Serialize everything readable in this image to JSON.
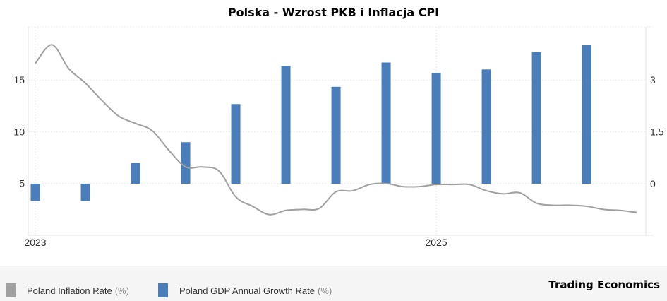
{
  "chart_data": {
    "type": "bar+line",
    "title": "Polska - Wzrost PKB i Inflacja CPI",
    "x_tick_labels": [
      "2023",
      "2025"
    ],
    "left_axis": {
      "ticks": [
        5,
        10,
        15
      ],
      "range": [
        0.5,
        19.5
      ]
    },
    "right_axis": {
      "ticks": [
        0,
        1.5,
        3
      ],
      "range": [
        -1.5,
        4.5
      ]
    },
    "grid": true,
    "legend_position": "bottom-left",
    "series": [
      {
        "name": "Poland Inflation Rate",
        "unit": "(%)",
        "type": "line",
        "axis": "left",
        "color": "#a0a0a0",
        "x": [
          "2023-01",
          "2023-02",
          "2023-03",
          "2023-04",
          "2023-05",
          "2023-06",
          "2023-07",
          "2023-08",
          "2023-09",
          "2023-10",
          "2023-11",
          "2023-12",
          "2024-01",
          "2024-02",
          "2024-03",
          "2024-04",
          "2024-05",
          "2024-06",
          "2024-07",
          "2024-08",
          "2024-09",
          "2024-10",
          "2024-11",
          "2024-12",
          "2025-01",
          "2025-02",
          "2025-03",
          "2025-04",
          "2025-05",
          "2025-06",
          "2025-07",
          "2025-08",
          "2025-09",
          "2025-10",
          "2025-11",
          "2025-12",
          "2026-01"
        ],
        "values": [
          16.6,
          18.4,
          16.1,
          14.7,
          13.0,
          11.5,
          10.8,
          10.1,
          8.2,
          6.6,
          6.6,
          6.2,
          3.7,
          2.8,
          2.0,
          2.4,
          2.5,
          2.6,
          4.2,
          4.3,
          4.9,
          5.0,
          4.7,
          4.7,
          4.9,
          4.9,
          4.9,
          4.3,
          4.0,
          4.1,
          3.1,
          2.9,
          2.9,
          2.8,
          2.5,
          2.4,
          2.2
        ]
      },
      {
        "name": "Poland GDP Annual Growth Rate",
        "unit": "(%)",
        "type": "bar",
        "axis": "right",
        "color": "#4a7ebb",
        "x": [
          "2023-Q1",
          "2023-Q2",
          "2023-Q3",
          "2023-Q4",
          "2024-Q1",
          "2024-Q2",
          "2024-Q3",
          "2024-Q4",
          "2025-Q1",
          "2025-Q2",
          "2025-Q3",
          "2025-Q4"
        ],
        "values": [
          -0.5,
          -0.5,
          0.6,
          1.2,
          2.3,
          3.4,
          2.8,
          3.5,
          3.2,
          3.3,
          3.8,
          4.0
        ]
      }
    ]
  },
  "source": "Trading Economics"
}
